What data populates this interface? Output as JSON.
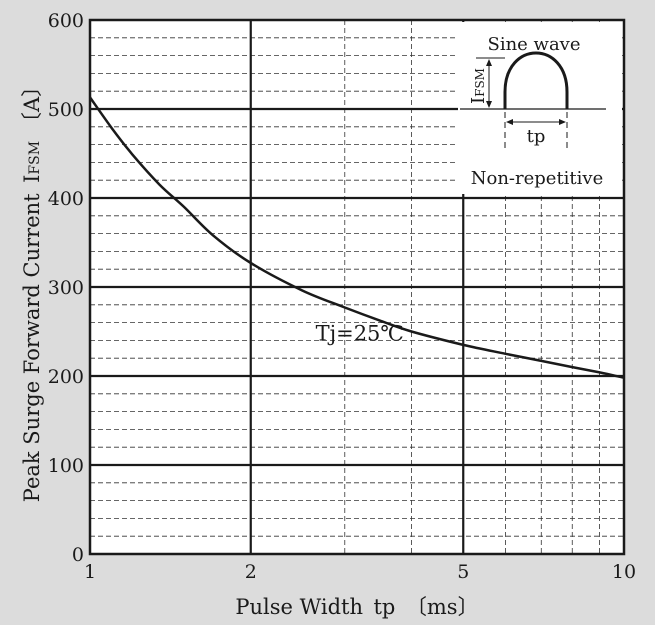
{
  "chart_data": {
    "type": "line",
    "title": "",
    "xlabel": "Pulse Width tp 〔ms〕",
    "ylabel_main": "Peak Surge Forward Current I",
    "ylabel_sub": "FSM",
    "ylabel_unit": "〔A〕",
    "x_scale": "log",
    "xlim": [
      1,
      10
    ],
    "ylim": [
      0,
      600
    ],
    "x_ticks": [
      1,
      2,
      5,
      10
    ],
    "x_tick_labels": [
      "1",
      "2",
      "5",
      "10"
    ],
    "y_ticks": [
      0,
      100,
      200,
      300,
      400,
      500,
      600
    ],
    "y_tick_labels": [
      "0",
      "100",
      "200",
      "300",
      "400",
      "500",
      "600"
    ],
    "grid": {
      "major": true,
      "minor_dashed": true
    },
    "series": [
      {
        "x": [
          1,
          1.1,
          1.2,
          1.35,
          1.5,
          1.7,
          2,
          2.5,
          3,
          3.5,
          4,
          5,
          6,
          7,
          8,
          9,
          10
        ],
        "y": [
          513,
          478,
          449,
          415,
          390,
          358,
          327,
          296,
          277,
          262,
          250,
          235,
          225,
          217,
          210,
          204,
          198
        ]
      }
    ],
    "annotations": [
      {
        "text": "Tj=25℃",
        "x": 3.2,
        "y": 240
      }
    ],
    "inset": {
      "title": "Sine wave",
      "amplitude_main": "I",
      "amplitude_sub": "FSM",
      "width_label": "tp",
      "footer": "Non-repetitive"
    }
  }
}
